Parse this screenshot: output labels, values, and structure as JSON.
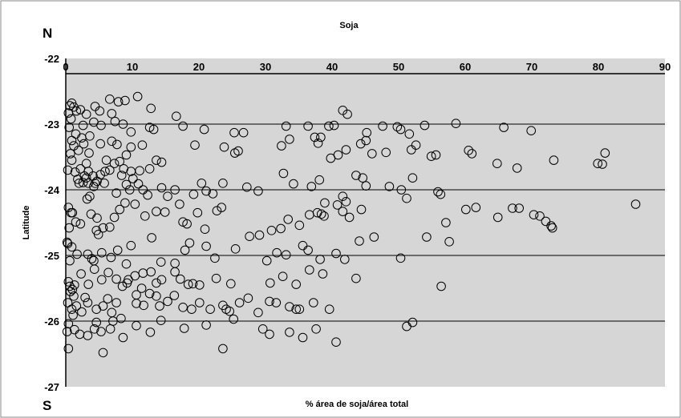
{
  "chart_data": {
    "type": "scatter",
    "title": "Soja",
    "xlabel": "% área de soja/área total",
    "ylabel": "Latitude",
    "xlim": [
      0,
      90
    ],
    "ylim": [
      -27,
      -22
    ],
    "x_ticks": [
      0,
      10,
      20,
      30,
      40,
      50,
      60,
      70,
      80,
      90
    ],
    "y_ticks": [
      -22,
      -23,
      -24,
      -25,
      -26,
      -27
    ],
    "y_ticks_labels": [
      "-22",
      "-23",
      "-24",
      "-25",
      "-26",
      "-27"
    ],
    "x_ticks_labels": [
      "0",
      "10",
      "20",
      "30",
      "40",
      "50",
      "60",
      "70",
      "80",
      "90"
    ],
    "top_corner_label": "N",
    "bottom_corner_label": "S",
    "grid": "horizontal",
    "legend": "none",
    "marker": "hollow-circle",
    "colors": {
      "plot_background": "#d6d6d6",
      "marker_stroke": "#000000",
      "gridline": "#000000"
    },
    "points": [
      [
        0.6,
        -22.72
      ],
      [
        0.9,
        -22.68
      ],
      [
        1.2,
        -22.74
      ],
      [
        0.4,
        -22.83
      ],
      [
        1.6,
        -22.8
      ],
      [
        0.8,
        -22.92
      ],
      [
        2.2,
        -22.78
      ],
      [
        3.1,
        -22.85
      ],
      [
        4.4,
        -22.73
      ],
      [
        5.1,
        -22.8
      ],
      [
        6.6,
        -22.62
      ],
      [
        7.9,
        -22.66
      ],
      [
        8.9,
        -22.64
      ],
      [
        10.8,
        -22.58
      ],
      [
        12.8,
        -22.76
      ],
      [
        6.9,
        -22.84
      ],
      [
        4.2,
        -22.97
      ],
      [
        2.6,
        -23.02
      ],
      [
        5.3,
        -23.02
      ],
      [
        7.4,
        -22.96
      ],
      [
        8.6,
        -23.0
      ],
      [
        9.8,
        -23.12
      ],
      [
        12.6,
        -23.05
      ],
      [
        13.2,
        -23.08
      ],
      [
        16.6,
        -22.88
      ],
      [
        17.6,
        -23.03
      ],
      [
        20.8,
        -23.08
      ],
      [
        25.3,
        -23.13
      ],
      [
        26.7,
        -23.13
      ],
      [
        33.1,
        -23.03
      ],
      [
        36.4,
        -23.03
      ],
      [
        39.5,
        -23.03
      ],
      [
        40.3,
        -23.02
      ],
      [
        45.2,
        -23.13
      ],
      [
        47.6,
        -23.03
      ],
      [
        49.8,
        -23.04
      ],
      [
        50.3,
        -23.08
      ],
      [
        51.6,
        -23.15
      ],
      [
        53.9,
        -23.02
      ],
      [
        58.6,
        -22.99
      ],
      [
        65.8,
        -23.05
      ],
      [
        69.9,
        -23.1
      ],
      [
        41.6,
        -22.79
      ],
      [
        42.3,
        -22.85
      ],
      [
        0.5,
        -23.05
      ],
      [
        1.5,
        -23.15
      ],
      [
        0.9,
        -23.25
      ],
      [
        2.4,
        -23.21
      ],
      [
        3.6,
        -23.18
      ],
      [
        1.2,
        -23.33
      ],
      [
        2.7,
        -23.3
      ],
      [
        0.7,
        -23.45
      ],
      [
        1.9,
        -23.4
      ],
      [
        3.5,
        -23.44
      ],
      [
        5.2,
        -23.3
      ],
      [
        6.9,
        -23.26
      ],
      [
        7.7,
        -23.31
      ],
      [
        9.8,
        -23.35
      ],
      [
        11.5,
        -23.32
      ],
      [
        9.1,
        -23.47
      ],
      [
        8.1,
        -23.57
      ],
      [
        13.6,
        -23.55
      ],
      [
        14.4,
        -23.58
      ],
      [
        11.1,
        -23.71
      ],
      [
        19.4,
        -23.32
      ],
      [
        23.8,
        -23.35
      ],
      [
        25.4,
        -23.44
      ],
      [
        25.9,
        -23.41
      ],
      [
        32.4,
        -23.33
      ],
      [
        33.6,
        -23.23
      ],
      [
        37.4,
        -23.2
      ],
      [
        37.9,
        -23.29
      ],
      [
        38.3,
        -23.2
      ],
      [
        39.8,
        -23.52
      ],
      [
        40.9,
        -23.47
      ],
      [
        42.1,
        -23.39
      ],
      [
        44.3,
        -23.3
      ],
      [
        45.1,
        -23.25
      ],
      [
        46.0,
        -23.45
      ],
      [
        48.1,
        -23.43
      ],
      [
        51.9,
        -23.39
      ],
      [
        52.6,
        -23.32
      ],
      [
        54.9,
        -23.49
      ],
      [
        55.6,
        -23.47
      ],
      [
        60.5,
        -23.4
      ],
      [
        61.0,
        -23.45
      ],
      [
        64.8,
        -23.6
      ],
      [
        67.8,
        -23.67
      ],
      [
        73.3,
        -23.55
      ],
      [
        79.9,
        -23.6
      ],
      [
        80.6,
        -23.61
      ],
      [
        81.0,
        -23.44
      ],
      [
        0.3,
        -23.7
      ],
      [
        1.4,
        -23.73
      ],
      [
        2.2,
        -23.68
      ],
      [
        2.8,
        -23.79
      ],
      [
        3.4,
        -23.72
      ],
      [
        4.1,
        -23.79
      ],
      [
        4.7,
        -23.87
      ],
      [
        1.8,
        -23.84
      ],
      [
        2.6,
        -23.89
      ],
      [
        3.4,
        -23.9
      ],
      [
        4.2,
        -23.95
      ],
      [
        5.2,
        -23.77
      ],
      [
        5.9,
        -23.72
      ],
      [
        6.6,
        -23.7
      ],
      [
        7.3,
        -23.6
      ],
      [
        8.4,
        -23.78
      ],
      [
        9.1,
        -23.92
      ],
      [
        9.6,
        -24.0
      ],
      [
        10.1,
        -23.83
      ],
      [
        11.6,
        -24.0
      ],
      [
        12.3,
        -24.08
      ],
      [
        14.4,
        -23.97
      ],
      [
        15.3,
        -24.1
      ],
      [
        16.4,
        -24.0
      ],
      [
        19.2,
        -24.07
      ],
      [
        20.4,
        -23.9
      ],
      [
        21.1,
        -24.02
      ],
      [
        22.1,
        -24.06
      ],
      [
        23.6,
        -23.9
      ],
      [
        27.2,
        -23.96
      ],
      [
        28.9,
        -24.02
      ],
      [
        32.7,
        -23.75
      ],
      [
        34.2,
        -23.91
      ],
      [
        36.9,
        -23.95
      ],
      [
        38.1,
        -23.85
      ],
      [
        38.9,
        -24.2
      ],
      [
        40.8,
        -24.23
      ],
      [
        41.6,
        -24.1
      ],
      [
        42.1,
        -24.18
      ],
      [
        43.6,
        -23.78
      ],
      [
        44.6,
        -23.82
      ],
      [
        45.1,
        -23.94
      ],
      [
        44.4,
        -24.3
      ],
      [
        48.6,
        -23.95
      ],
      [
        50.4,
        -24.0
      ],
      [
        51.2,
        -24.13
      ],
      [
        52.1,
        -23.82
      ],
      [
        55.9,
        -24.03
      ],
      [
        56.3,
        -24.07
      ],
      [
        0.4,
        -24.27
      ],
      [
        0.8,
        -24.35
      ],
      [
        1.5,
        -24.49
      ],
      [
        3.2,
        -24.14
      ],
      [
        3.8,
        -24.37
      ],
      [
        4.7,
        -24.43
      ],
      [
        5.6,
        -24.58
      ],
      [
        7.3,
        -24.42
      ],
      [
        8.9,
        -24.2
      ],
      [
        11.9,
        -24.4
      ],
      [
        13.6,
        -24.33
      ],
      [
        17.6,
        -24.49
      ],
      [
        18.2,
        -24.52
      ],
      [
        20.9,
        -24.6
      ],
      [
        22.7,
        -24.32
      ],
      [
        23.4,
        -24.27
      ],
      [
        27.6,
        -24.71
      ],
      [
        29.1,
        -24.69
      ],
      [
        30.9,
        -24.62
      ],
      [
        32.3,
        -24.59
      ],
      [
        33.4,
        -24.45
      ],
      [
        35.1,
        -24.54
      ],
      [
        36.6,
        -24.38
      ],
      [
        37.8,
        -24.35
      ],
      [
        38.4,
        -24.37
      ],
      [
        38.8,
        -24.4
      ],
      [
        41.6,
        -24.33
      ],
      [
        42.6,
        -24.42
      ],
      [
        44.1,
        -24.78
      ],
      [
        46.3,
        -24.72
      ],
      [
        54.2,
        -24.72
      ],
      [
        57.1,
        -24.5
      ],
      [
        57.6,
        -24.79
      ],
      [
        60.1,
        -24.3
      ],
      [
        61.6,
        -24.27
      ],
      [
        64.9,
        -24.42
      ],
      [
        67.1,
        -24.28
      ],
      [
        68.1,
        -24.28
      ],
      [
        70.3,
        -24.38
      ],
      [
        71.2,
        -24.4
      ],
      [
        72.1,
        -24.48
      ],
      [
        73.1,
        -24.58
      ],
      [
        72.9,
        -24.55
      ],
      [
        85.6,
        -24.22
      ],
      [
        0.3,
        -24.82
      ],
      [
        0.9,
        -24.87
      ],
      [
        1.7,
        -24.98
      ],
      [
        0.6,
        -25.08
      ],
      [
        3.3,
        -24.98
      ],
      [
        4.2,
        -25.08
      ],
      [
        5.4,
        -24.96
      ],
      [
        6.8,
        -25.03
      ],
      [
        7.8,
        -24.92
      ],
      [
        9.1,
        -25.13
      ],
      [
        9.8,
        -24.85
      ],
      [
        12.9,
        -24.73
      ],
      [
        14.3,
        -25.1
      ],
      [
        16.4,
        -25.12
      ],
      [
        17.9,
        -24.92
      ],
      [
        18.6,
        -24.81
      ],
      [
        21.1,
        -24.86
      ],
      [
        22.4,
        -25.04
      ],
      [
        25.5,
        -24.9
      ],
      [
        30.2,
        -25.08
      ],
      [
        31.7,
        -24.96
      ],
      [
        33.1,
        -24.99
      ],
      [
        35.6,
        -24.85
      ],
      [
        36.4,
        -24.92
      ],
      [
        38.2,
        -25.06
      ],
      [
        40.6,
        -24.97
      ],
      [
        41.9,
        -25.06
      ],
      [
        50.3,
        -25.04
      ],
      [
        0.4,
        -25.4
      ],
      [
        1.3,
        -25.45
      ],
      [
        0.7,
        -25.55
      ],
      [
        2.3,
        -25.28
      ],
      [
        3.4,
        -25.44
      ],
      [
        4.3,
        -25.21
      ],
      [
        5.4,
        -25.37
      ],
      [
        6.4,
        -25.26
      ],
      [
        7.6,
        -25.36
      ],
      [
        8.5,
        -25.47
      ],
      [
        9.2,
        -25.42
      ],
      [
        10.4,
        -25.31
      ],
      [
        11.6,
        -25.27
      ],
      [
        12.8,
        -25.25
      ],
      [
        13.6,
        -25.42
      ],
      [
        14.4,
        -25.37
      ],
      [
        16.4,
        -25.25
      ],
      [
        17.2,
        -25.36
      ],
      [
        18.4,
        -25.44
      ],
      [
        20.1,
        -25.45
      ],
      [
        22.6,
        -25.35
      ],
      [
        24.8,
        -25.43
      ],
      [
        27.4,
        -25.65
      ],
      [
        30.7,
        -25.42
      ],
      [
        32.6,
        -25.32
      ],
      [
        34.6,
        -25.44
      ],
      [
        36.6,
        -25.22
      ],
      [
        38.6,
        -25.28
      ],
      [
        43.6,
        -25.35
      ],
      [
        56.4,
        -25.47
      ],
      [
        0.3,
        -25.72
      ],
      [
        0.9,
        -25.82
      ],
      [
        1.6,
        -25.77
      ],
      [
        1.1,
        -25.91
      ],
      [
        2.4,
        -25.86
      ],
      [
        3.3,
        -25.72
      ],
      [
        4.6,
        -25.82
      ],
      [
        5.6,
        -25.77
      ],
      [
        6.3,
        -25.66
      ],
      [
        6.9,
        -25.87
      ],
      [
        7.6,
        -25.72
      ],
      [
        10.6,
        -25.73
      ],
      [
        11.7,
        -25.76
      ],
      [
        12.6,
        -25.58
      ],
      [
        13.6,
        -25.62
      ],
      [
        15.3,
        -25.7
      ],
      [
        16.3,
        -25.61
      ],
      [
        17.6,
        -25.79
      ],
      [
        18.9,
        -25.82
      ],
      [
        20.1,
        -25.72
      ],
      [
        21.7,
        -25.82
      ],
      [
        23.6,
        -25.76
      ],
      [
        24.1,
        -25.82
      ],
      [
        24.6,
        -25.85
      ],
      [
        26.1,
        -25.72
      ],
      [
        28.9,
        -25.87
      ],
      [
        30.6,
        -25.7
      ],
      [
        31.6,
        -25.72
      ],
      [
        33.6,
        -25.78
      ],
      [
        34.6,
        -25.82
      ],
      [
        35.1,
        -25.82
      ],
      [
        37.2,
        -25.72
      ],
      [
        39.6,
        -25.82
      ],
      [
        0.4,
        -26.04
      ],
      [
        1.3,
        -26.13
      ],
      [
        2.1,
        -26.2
      ],
      [
        3.3,
        -26.22
      ],
      [
        4.3,
        -26.12
      ],
      [
        5.3,
        -26.16
      ],
      [
        6.7,
        -26.12
      ],
      [
        8.6,
        -26.25
      ],
      [
        10.6,
        -26.07
      ],
      [
        12.7,
        -26.17
      ],
      [
        14.3,
        -25.99
      ],
      [
        17.8,
        -26.11
      ],
      [
        21.1,
        -26.06
      ],
      [
        25.2,
        -25.97
      ],
      [
        29.6,
        -26.12
      ],
      [
        30.6,
        -26.2
      ],
      [
        33.6,
        -26.17
      ],
      [
        35.6,
        -26.25
      ],
      [
        37.6,
        -26.12
      ],
      [
        40.6,
        -26.32
      ],
      [
        51.2,
        -26.08
      ],
      [
        52.1,
        -26.02
      ],
      [
        0.4,
        -26.42
      ],
      [
        5.6,
        -26.48
      ],
      [
        23.6,
        -26.42
      ],
      [
        0.2,
        -26.16
      ],
      [
        0.6,
        -25.47
      ],
      [
        1.0,
        -25.52
      ],
      [
        0.2,
        -24.8
      ],
      [
        0.5,
        -24.58
      ],
      [
        1.0,
        -24.35
      ],
      [
        2.2,
        -24.52
      ],
      [
        3.6,
        -24.1
      ],
      [
        4.6,
        -24.62
      ],
      [
        6.6,
        -24.57
      ],
      [
        4.9,
        -24.68
      ],
      [
        3.9,
        -25.05
      ],
      [
        1.2,
        -25.62
      ],
      [
        2.9,
        -25.64
      ],
      [
        4.6,
        -26.02
      ],
      [
        7.1,
        -26.0
      ],
      [
        8.3,
        -25.96
      ],
      [
        9.4,
        -25.37
      ],
      [
        10.6,
        -25.6
      ],
      [
        11.4,
        -25.5
      ],
      [
        14.1,
        -25.77
      ],
      [
        19.1,
        -25.43
      ],
      [
        3.1,
        -23.6
      ],
      [
        5.8,
        -23.9
      ],
      [
        7.6,
        -24.05
      ],
      [
        0.9,
        -23.55
      ],
      [
        2.0,
        -23.9
      ],
      [
        3.1,
        -23.82
      ],
      [
        4.4,
        -23.9
      ],
      [
        6.1,
        -23.55
      ],
      [
        8.7,
        -23.68
      ],
      [
        9.8,
        -23.72
      ],
      [
        10.9,
        -23.91
      ],
      [
        12.6,
        -23.68
      ],
      [
        8.1,
        -24.3
      ],
      [
        10.4,
        -24.22
      ],
      [
        14.9,
        -24.34
      ],
      [
        17.1,
        -24.22
      ],
      [
        19.8,
        -24.35
      ]
    ]
  }
}
